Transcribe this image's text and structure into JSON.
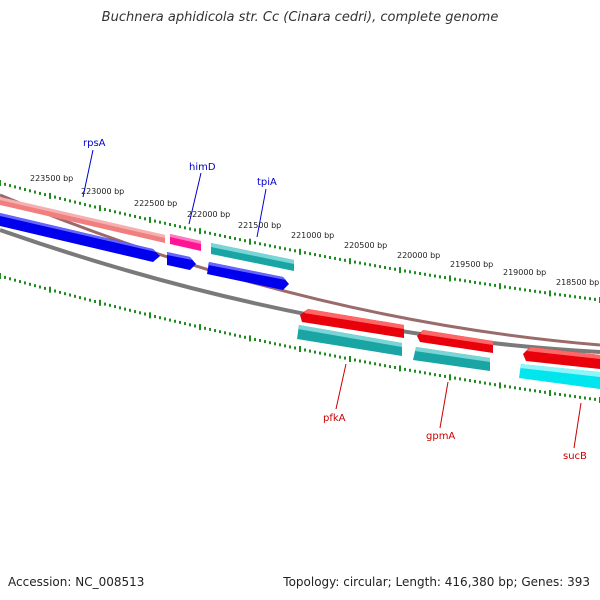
{
  "title": "Buchnera aphidicola str. Cc (Cinara cedri), complete genome",
  "accession": "Accession: NC_008513",
  "summary": "Topology: circular; Length: 416,380 bp; Genes: 393",
  "colors": {
    "strand_forward_dark": "#e8000a",
    "strand_forward_light": "#f08080",
    "pink": "#ff1493",
    "teal": "#1aa5a5",
    "cyan": "#00e5ee",
    "blue": "#0000ee",
    "backbone": "#808080",
    "tick": "#1e8c1e",
    "label_blue": "#0000cc",
    "label_red": "#cc0000"
  },
  "ruler": [
    {
      "text": "223500 bp"
    },
    {
      "text": "223000 bp"
    },
    {
      "text": "222500 bp"
    },
    {
      "text": "222000 bp"
    },
    {
      "text": "221500 bp"
    },
    {
      "text": "221000 bp"
    },
    {
      "text": "220500 bp"
    },
    {
      "text": "220000 bp"
    },
    {
      "text": "219500 bp"
    },
    {
      "text": "219000 bp"
    },
    {
      "text": "218500 bp"
    }
  ],
  "gene_labels": {
    "rpsA": "rpsA",
    "himD": "himD",
    "tpiA": "tpiA",
    "pfkA": "pfkA",
    "gpmA": "gpmA",
    "sucB": "sucB"
  }
}
